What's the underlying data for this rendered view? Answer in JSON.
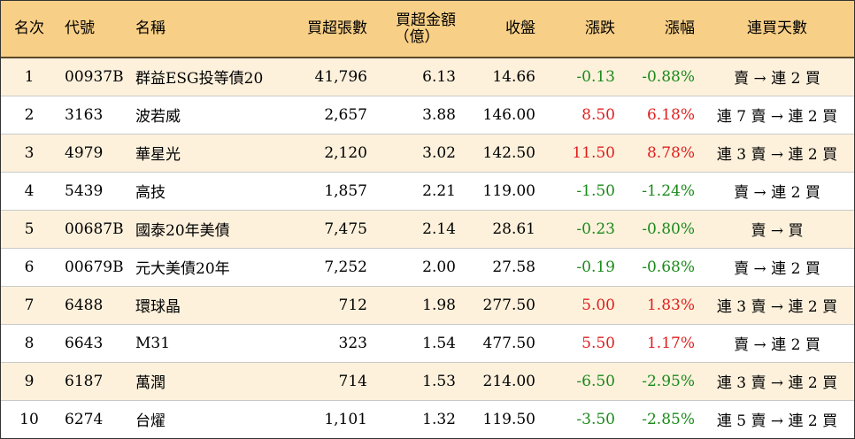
{
  "headers": {
    "rank": "名次",
    "code": "代號",
    "name": "名稱",
    "volume": "買超張數",
    "amount_line1": "買超金額",
    "amount_line2": "（億）",
    "close": "收盤",
    "change": "漲跌",
    "pct": "漲幅",
    "days": "連買天數"
  },
  "colors": {
    "header_bg": "#f8cf86",
    "alt_row_bg": "#fdf1dc",
    "up": "#e01e1e",
    "down": "#1a8a1a"
  },
  "rows": [
    {
      "rank": "1",
      "code": "00937B",
      "name": "群益ESG投等債20",
      "volume": "41,796",
      "amount": "6.13",
      "close": "14.66",
      "change": "-0.13",
      "pct": "-0.88%",
      "days": "賣 → 連 2 買",
      "dir": "down"
    },
    {
      "rank": "2",
      "code": "3163",
      "name": "波若威",
      "volume": "2,657",
      "amount": "3.88",
      "close": "146.00",
      "change": "8.50",
      "pct": "6.18%",
      "days": "連 7 賣 → 連 2 買",
      "dir": "up"
    },
    {
      "rank": "3",
      "code": "4979",
      "name": "華星光",
      "volume": "2,120",
      "amount": "3.02",
      "close": "142.50",
      "change": "11.50",
      "pct": "8.78%",
      "days": "連 3 賣 → 連 2 買",
      "dir": "up"
    },
    {
      "rank": "4",
      "code": "5439",
      "name": "高技",
      "volume": "1,857",
      "amount": "2.21",
      "close": "119.00",
      "change": "-1.50",
      "pct": "-1.24%",
      "days": "賣 → 連 2 買",
      "dir": "down"
    },
    {
      "rank": "5",
      "code": "00687B",
      "name": "國泰20年美債",
      "volume": "7,475",
      "amount": "2.14",
      "close": "28.61",
      "change": "-0.23",
      "pct": "-0.80%",
      "days": "賣 → 買",
      "dir": "down"
    },
    {
      "rank": "6",
      "code": "00679B",
      "name": "元大美債20年",
      "volume": "7,252",
      "amount": "2.00",
      "close": "27.58",
      "change": "-0.19",
      "pct": "-0.68%",
      "days": "賣 → 連 2 買",
      "dir": "down"
    },
    {
      "rank": "7",
      "code": "6488",
      "name": "環球晶",
      "volume": "712",
      "amount": "1.98",
      "close": "277.50",
      "change": "5.00",
      "pct": "1.83%",
      "days": "連 3 賣 → 連 2 買",
      "dir": "up"
    },
    {
      "rank": "8",
      "code": "6643",
      "name": "M31",
      "volume": "323",
      "amount": "1.54",
      "close": "477.50",
      "change": "5.50",
      "pct": "1.17%",
      "days": "賣 → 連 2 買",
      "dir": "up"
    },
    {
      "rank": "9",
      "code": "6187",
      "name": "萬潤",
      "volume": "714",
      "amount": "1.53",
      "close": "214.00",
      "change": "-6.50",
      "pct": "-2.95%",
      "days": "連 3 賣 → 連 2 買",
      "dir": "down"
    },
    {
      "rank": "10",
      "code": "6274",
      "name": "台燿",
      "volume": "1,101",
      "amount": "1.32",
      "close": "119.50",
      "change": "-3.50",
      "pct": "-2.85%",
      "days": "連 5 賣 → 連 2 買",
      "dir": "down"
    }
  ]
}
